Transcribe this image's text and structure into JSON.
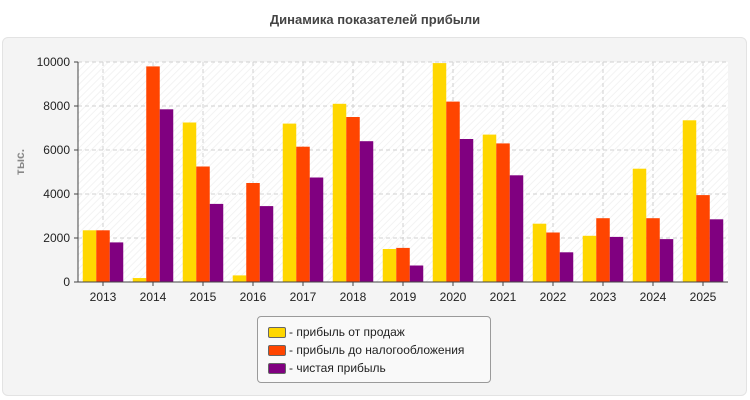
{
  "chart_data": {
    "type": "bar",
    "title": "Динамика показателей прибыли",
    "ylabel": "тыс.",
    "xlabel": "",
    "ylim": [
      0,
      10000
    ],
    "yticks": [
      0,
      2000,
      4000,
      6000,
      8000,
      10000
    ],
    "grid": true,
    "legend_position": "bottom",
    "categories": [
      "2013",
      "2014",
      "2015",
      "2016",
      "2017",
      "2018",
      "2019",
      "2020",
      "2021",
      "2022",
      "2023",
      "2024",
      "2025"
    ],
    "series": [
      {
        "name": "- прибыль от продаж",
        "color": "#ffd700",
        "values": [
          2350,
          180,
          7250,
          300,
          7200,
          8100,
          1500,
          9950,
          6700,
          2650,
          2100,
          5150,
          7350
        ]
      },
      {
        "name": "- прибыль до налогообложения",
        "color": "#ff4500",
        "values": [
          2350,
          9800,
          5250,
          4500,
          6150,
          7500,
          1550,
          8200,
          6300,
          2250,
          2900,
          2900,
          3950
        ]
      },
      {
        "name": "- чистая прибыль",
        "color": "#800080",
        "values": [
          1800,
          7850,
          3550,
          3450,
          4750,
          6400,
          750,
          6500,
          4850,
          1350,
          2050,
          1950,
          2850
        ]
      }
    ]
  }
}
